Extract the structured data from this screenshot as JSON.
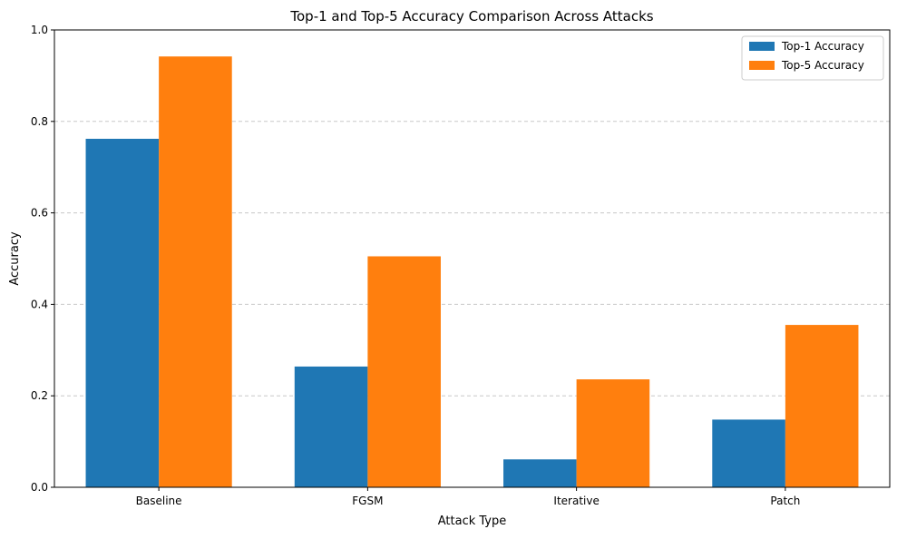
{
  "chart_data": {
    "type": "bar",
    "title": "Top-1 and Top-5 Accuracy Comparison Across Attacks",
    "xlabel": "Attack Type",
    "ylabel": "Accuracy",
    "categories": [
      "Baseline",
      "FGSM",
      "Iterative",
      "Patch"
    ],
    "series": [
      {
        "name": "Top-1 Accuracy",
        "color": "#1f77b4",
        "values": [
          0.762,
          0.264,
          0.061,
          0.148
        ]
      },
      {
        "name": "Top-5 Accuracy",
        "color": "#ff7f0e",
        "values": [
          0.942,
          0.505,
          0.236,
          0.355
        ]
      }
    ],
    "ylim": [
      0,
      1.0
    ],
    "yticks": [
      "0.0",
      "0.2",
      "0.4",
      "0.6",
      "0.8",
      "1.0"
    ],
    "grid": {
      "axis": "y",
      "style": "dashed",
      "color": "#c8c8c8"
    },
    "legend_position": "top-right"
  }
}
